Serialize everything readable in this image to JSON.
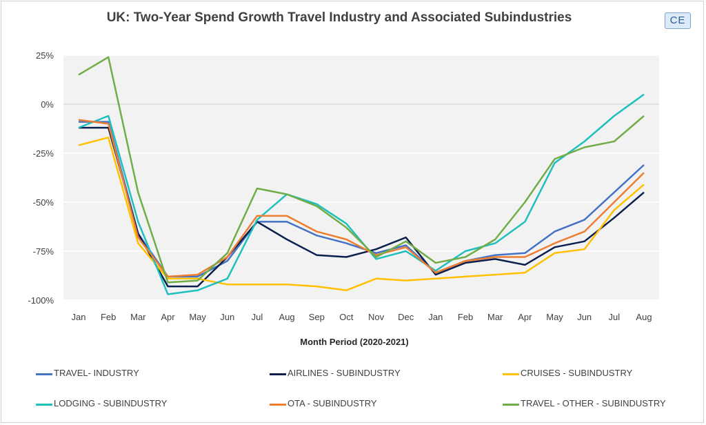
{
  "header": {
    "title": "UK: Two-Year Spend Growth Travel Industry and Associated Subindustries",
    "badge": "CE"
  },
  "chart_data": {
    "type": "line",
    "title": "UK: Two-Year Spend Growth Travel Industry and Associated Subindustries",
    "xlabel": "Month Period (2020-2021)",
    "ylabel": "",
    "categories": [
      "Jan",
      "Feb",
      "Mar",
      "Apr",
      "May",
      "Jun",
      "Jul",
      "Aug",
      "Sep",
      "Oct",
      "Nov",
      "Dec",
      "Jan",
      "Feb",
      "Mar",
      "Apr",
      "May",
      "Jun",
      "Jul",
      "Aug"
    ],
    "ylim": [
      -100,
      25
    ],
    "yticks": [
      25,
      0,
      -25,
      -50,
      -75,
      -100
    ],
    "ytick_labels": [
      "25%",
      "0%",
      "-25%",
      "-50%",
      "-75%",
      "-100%"
    ],
    "grid": true,
    "legend_position": "bottom",
    "series": [
      {
        "name": "TRAVEL- INDUSTRY",
        "color": "#4472c4",
        "values": [
          -9,
          -9,
          -66,
          -88,
          -88,
          -80,
          -60,
          -60,
          -67,
          -71,
          -76,
          -72,
          -86,
          -80,
          -77,
          -76,
          -65,
          -59,
          -45,
          -31
        ]
      },
      {
        "name": "AIRLINES - SUBINDUSTRY",
        "color": "#0b1f4d",
        "values": [
          -12,
          -12,
          -66,
          -93,
          -93,
          -78,
          -60,
          -69,
          -77,
          -78,
          -74,
          -68,
          -87,
          -81,
          -79,
          -82,
          -73,
          -70,
          -58,
          -45
        ]
      },
      {
        "name": "CRUISES - SUBINDUSTRY",
        "color": "#ffc000",
        "values": [
          -21,
          -17,
          -71,
          -89,
          -89,
          -92,
          -92,
          -92,
          -93,
          -95,
          -89,
          -90,
          -89,
          -88,
          -87,
          -86,
          -76,
          -74,
          -54,
          -41
        ]
      },
      {
        "name": "LODGING - SUBINDUSTRY",
        "color": "#1fbfbf",
        "values": [
          -12,
          -6,
          -60,
          -97,
          -95,
          -89,
          -59,
          -46,
          -51,
          -61,
          -79,
          -75,
          -85,
          -75,
          -71,
          -60,
          -30,
          -19,
          -6,
          5
        ]
      },
      {
        "name": "OTA - SUBINDUSTRY",
        "color": "#ed7d31",
        "values": [
          -8,
          -10,
          -68,
          -88,
          -87,
          -78,
          -57,
          -57,
          -65,
          -69,
          -77,
          -73,
          -86,
          -80,
          -78,
          -78,
          -71,
          -65,
          -50,
          -35
        ]
      },
      {
        "name": "TRAVEL - OTHER - SUBINDUSTRY",
        "color": "#70ad47",
        "values": [
          15,
          24,
          -45,
          -91,
          -90,
          -76,
          -43,
          -46,
          -52,
          -63,
          -78,
          -70,
          -81,
          -78,
          -69,
          -50,
          -28,
          -22,
          -19,
          -6
        ]
      }
    ]
  }
}
